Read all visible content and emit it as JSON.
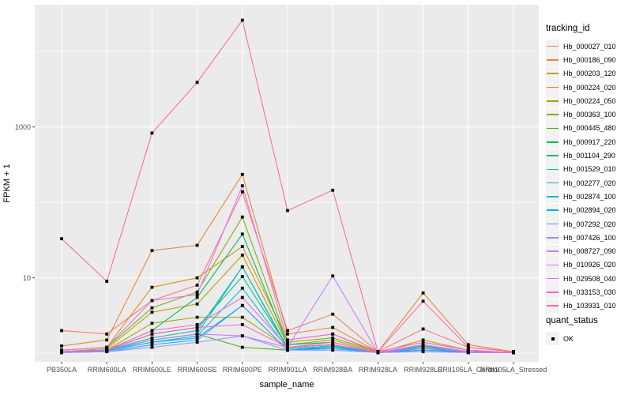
{
  "figure": {
    "background": "#FFFFFF",
    "panel_background": "#EBEBEB",
    "gridline_color": "#FFFFFF",
    "tick_color": "#333333",
    "tick_label_color": "#4D4D4D",
    "point_color": "#000000"
  },
  "axes": {
    "x": {
      "title": "sample_name",
      "categories": [
        "PB350LA",
        "RRIM600LA",
        "RRIM600LE",
        "RRIM600SE",
        "RRIM600PE",
        "RRIM901LA",
        "RRIM928BA",
        "RRIM928LA",
        "RRIM928LE",
        "RRII105LA_Control",
        "RRII105LA_Stressed"
      ]
    },
    "y": {
      "title": "FPKM + 1",
      "scale": "log10",
      "tick_labels": [
        "10",
        "1000"
      ],
      "tick_values": [
        10,
        1000
      ],
      "minor_grid_values": [
        1,
        100,
        10000
      ]
    }
  },
  "legends": {
    "tracking": {
      "title": "tracking_id"
    },
    "quant": {
      "title": "quant_status",
      "items": [
        {
          "label": "OK",
          "point_shape": "filled-square",
          "point_color": "#000000"
        }
      ]
    }
  },
  "chart_data": {
    "type": "line",
    "title": "",
    "xlabel": "sample_name",
    "ylabel": "FPKM + 1",
    "yscale": "log10",
    "ylim": [
      1,
      30000
    ],
    "yticks": [
      10,
      1000
    ],
    "grid": true,
    "legend_position": "right",
    "point_shape": "filled-square",
    "point_color": "#000000",
    "x": [
      "PB350LA",
      "RRIM600LA",
      "RRIM600LE",
      "RRIM600SE",
      "RRIM600PE",
      "RRIM901LA",
      "RRIM928BA",
      "RRIM928LA",
      "RRIM928LE",
      "RRII105LA_Control",
      "RRII105LA_Stressed"
    ],
    "series": [
      {
        "name": "Hb_000027_010",
        "color": "#F8766D",
        "values": [
          2.0,
          1.8,
          5.0,
          8.0,
          138,
          2.0,
          3.3,
          1.05,
          2.1,
          1.2,
          1.05
        ]
      },
      {
        "name": "Hb_000186_090",
        "color": "#EA8331",
        "values": [
          1.25,
          1.5,
          23,
          27,
          235,
          1.8,
          2.2,
          1.05,
          6.3,
          1.3,
          1.05
        ]
      },
      {
        "name": "Hb_000203_120",
        "color": "#D89000",
        "values": [
          1.1,
          1.2,
          7.5,
          10,
          26,
          1.5,
          1.8,
          1.02,
          1.5,
          1.1,
          1.02
        ]
      },
      {
        "name": "Hb_000224_020",
        "color": "#C09B00",
        "values": [
          1.05,
          1.15,
          3.5,
          4.5,
          20,
          1.3,
          1.5,
          1.02,
          1.3,
          1.05,
          1.02
        ]
      },
      {
        "name": "Hb_000224_050",
        "color": "#A3A500",
        "values": [
          1.05,
          1.1,
          2.5,
          3.0,
          3.0,
          1.2,
          1.3,
          1.02,
          1.2,
          1.05,
          1.02
        ]
      },
      {
        "name": "Hb_000363_100",
        "color": "#7CAE00",
        "values": [
          1.1,
          1.2,
          4.0,
          6.5,
          64,
          1.4,
          1.6,
          1.05,
          1.4,
          1.1,
          1.02
        ]
      },
      {
        "name": "Hb_000445_480",
        "color": "#39B600",
        "values": [
          1.05,
          1.1,
          1.5,
          1.8,
          1.2,
          1.1,
          1.2,
          1.02,
          1.1,
          1.05,
          1.02
        ]
      },
      {
        "name": "Hb_000917_220",
        "color": "#00BB4E",
        "values": [
          1.05,
          1.1,
          2.0,
          5.5,
          38,
          1.3,
          1.4,
          1.02,
          1.2,
          1.05,
          1.02
        ]
      },
      {
        "name": "Hb_001104_290",
        "color": "#00BF7D",
        "values": [
          1.05,
          1.1,
          1.8,
          2.2,
          10.4,
          1.2,
          1.3,
          1.02,
          1.25,
          1.05,
          1.02
        ]
      },
      {
        "name": "Hb_001529_010",
        "color": "#00C1A3",
        "values": [
          1.05,
          1.1,
          1.6,
          2.0,
          14,
          1.2,
          1.3,
          1.02,
          1.25,
          1.05,
          1.02
        ]
      },
      {
        "name": "Hb_002277_020",
        "color": "#00BFC4",
        "values": [
          1.05,
          1.08,
          1.5,
          1.8,
          14,
          1.15,
          1.25,
          1.02,
          1.2,
          1.05,
          1.02
        ]
      },
      {
        "name": "Hb_002874_100",
        "color": "#00BAE0",
        "values": [
          1.05,
          1.08,
          1.4,
          1.7,
          7.3,
          1.15,
          1.2,
          1.02,
          1.15,
          1.05,
          1.02
        ]
      },
      {
        "name": "Hb_002894_020",
        "color": "#00B0F6",
        "values": [
          1.05,
          1.08,
          1.4,
          1.6,
          4.3,
          1.1,
          1.2,
          1.02,
          1.1,
          1.05,
          1.02
        ]
      },
      {
        "name": "Hb_007292_020",
        "color": "#35A2FF",
        "values": [
          1.02,
          1.05,
          1.3,
          1.5,
          4.3,
          1.1,
          1.15,
          1.02,
          1.1,
          1.02,
          1.02
        ]
      },
      {
        "name": "Hb_007426_100",
        "color": "#9590FF",
        "values": [
          1.02,
          1.05,
          1.2,
          1.4,
          1.7,
          1.1,
          1.1,
          1.02,
          1.05,
          1.02,
          1.02
        ]
      },
      {
        "name": "Hb_008727_090",
        "color": "#C77CFF",
        "values": [
          1.05,
          1.1,
          1.5,
          1.8,
          1.7,
          1.2,
          10.6,
          1.02,
          1.3,
          1.05,
          1.02
        ]
      },
      {
        "name": "Hb_010926_020",
        "color": "#E76BF3",
        "values": [
          1.1,
          1.2,
          5.0,
          6.0,
          166,
          1.5,
          1.8,
          1.05,
          1.4,
          1.1,
          1.02
        ]
      },
      {
        "name": "Hb_029508_040",
        "color": "#FA62DB",
        "values": [
          1.05,
          1.1,
          2.0,
          2.4,
          5.5,
          1.2,
          1.4,
          1.02,
          1.2,
          1.05,
          1.02
        ]
      },
      {
        "name": "Hb_033153_030",
        "color": "#FF61C3",
        "values": [
          1.05,
          1.1,
          1.8,
          2.2,
          2.4,
          1.2,
          1.3,
          1.02,
          1.2,
          1.05,
          1.02
        ]
      },
      {
        "name": "Hb_103931_010",
        "color": "#FF67A4",
        "values": [
          33,
          9,
          830,
          3900,
          26000,
          78,
          145,
          1.05,
          4.9,
          1.2,
          1.05
        ]
      }
    ]
  }
}
